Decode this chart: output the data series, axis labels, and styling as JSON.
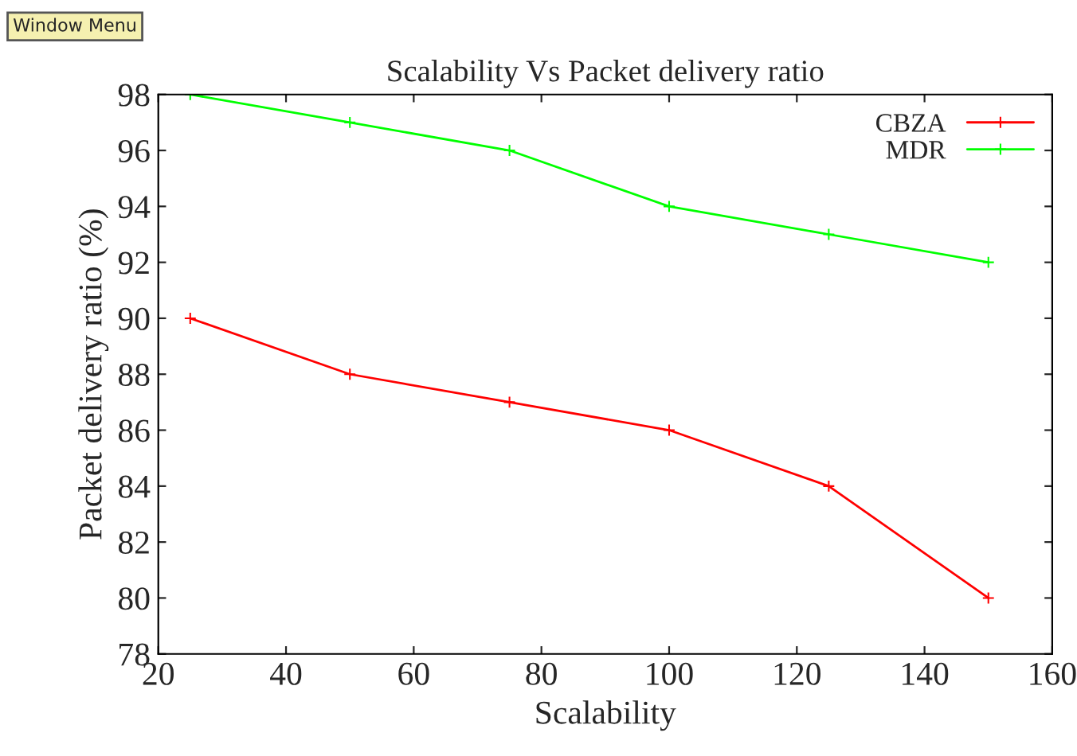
{
  "chart_data": {
    "type": "line",
    "title": "Scalability Vs Packet delivery ratio",
    "xlabel": "Scalability",
    "ylabel": "Packet delivery ratio (%)",
    "annotations": [
      "Window Menu"
    ],
    "x": [
      25,
      50,
      75,
      100,
      125,
      150
    ],
    "series": [
      {
        "name": "CBZA",
        "color": "#ff0000",
        "values": [
          90,
          88,
          87,
          86,
          84,
          80
        ]
      },
      {
        "name": "MDR",
        "color": "#00ff00",
        "values": [
          98,
          97,
          96,
          94,
          93,
          92
        ]
      }
    ],
    "xlim": [
      20,
      160
    ],
    "xticks": [
      20,
      40,
      60,
      80,
      100,
      120,
      140,
      160
    ],
    "ylim": [
      78,
      98
    ],
    "yticks": [
      78,
      80,
      82,
      84,
      86,
      88,
      90,
      92,
      94,
      96,
      98
    ],
    "legend": "top right",
    "marker": "cross",
    "line_style": "solid",
    "grid": false
  }
}
